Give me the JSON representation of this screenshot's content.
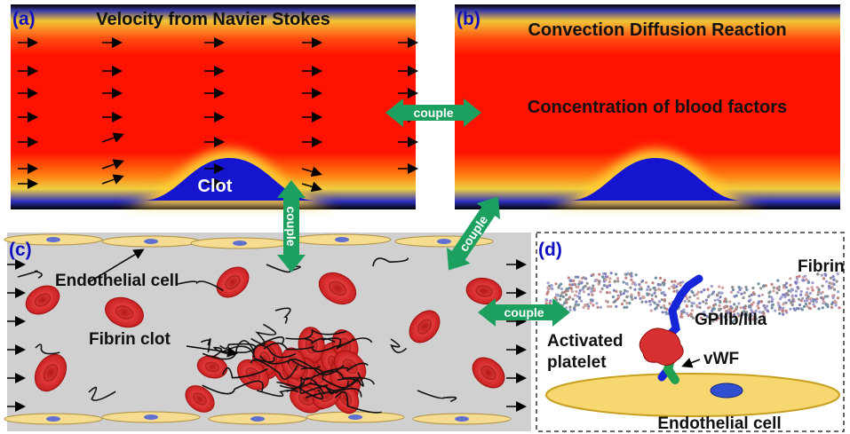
{
  "panels": [
    {
      "label": "(a)",
      "title": "Velocity from Navier Stokes",
      "annotation": "Clot"
    },
    {
      "label": "(b)",
      "title": "Convection Diffusion Reaction",
      "subtitle": "Concentration of blood factors"
    },
    {
      "label": "(c)",
      "labels": [
        "Endothelial cell",
        "Fibrin clot"
      ]
    },
    {
      "label": "(d)",
      "labels": [
        "Fibrin",
        "GPIIb/IIIa",
        "vWF",
        "Endothelial cell"
      ],
      "activated_platelet": [
        "Activated",
        "platelet"
      ]
    }
  ],
  "couplings": [
    "couple",
    "couple",
    "couple",
    "couple"
  ]
}
